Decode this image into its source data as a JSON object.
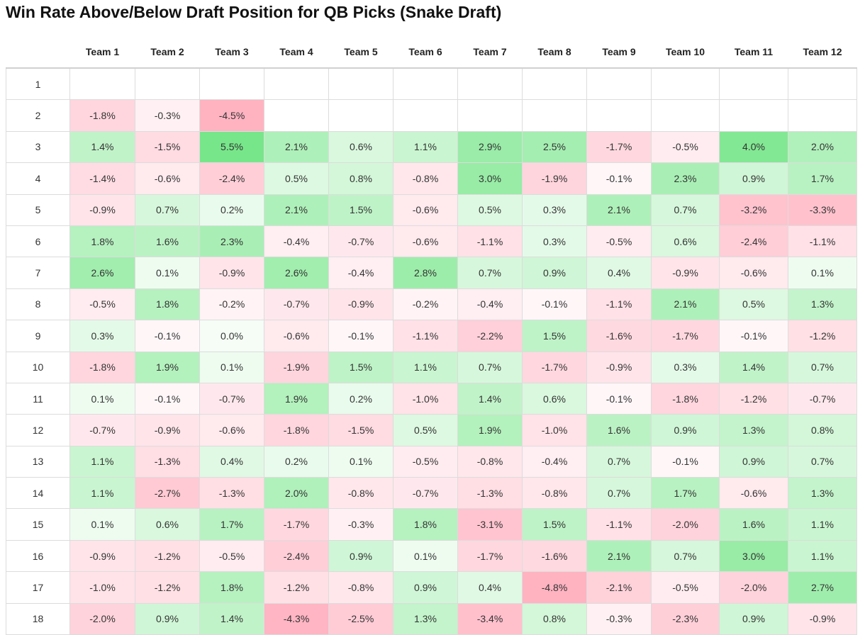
{
  "chart_data": {
    "type": "heatmap",
    "title": "Win Rate Above/Below Draft Position for QB Picks (Snake Draft)",
    "columns": [
      "Team 1",
      "Team 2",
      "Team 3",
      "Team 4",
      "Team 5",
      "Team 6",
      "Team 7",
      "Team 8",
      "Team 9",
      "Team 10",
      "Team 11",
      "Team 12"
    ],
    "rows": [
      "1",
      "2",
      "3",
      "4",
      "5",
      "6",
      "7",
      "8",
      "9",
      "10",
      "11",
      "12",
      "13",
      "14",
      "15",
      "16",
      "17",
      "18"
    ],
    "unit": "%",
    "color_scale": {
      "negative": "#ffb3c1",
      "zero": "#ffffff",
      "positive": "#77e68a"
    },
    "values": [
      [
        null,
        null,
        null,
        null,
        null,
        null,
        null,
        null,
        null,
        null,
        null,
        null
      ],
      [
        -1.8,
        -0.3,
        -4.5,
        null,
        null,
        null,
        null,
        null,
        null,
        null,
        null,
        null
      ],
      [
        1.4,
        -1.5,
        5.5,
        2.1,
        0.6,
        1.1,
        2.9,
        2.5,
        -1.7,
        -0.5,
        4.0,
        2.0
      ],
      [
        -1.4,
        -0.6,
        -2.4,
        0.5,
        0.8,
        -0.8,
        3.0,
        -1.9,
        -0.1,
        2.3,
        0.9,
        1.7
      ],
      [
        -0.9,
        0.7,
        0.2,
        2.1,
        1.5,
        -0.6,
        0.5,
        0.3,
        2.1,
        0.7,
        -3.2,
        -3.3
      ],
      [
        1.8,
        1.6,
        2.3,
        -0.4,
        -0.7,
        -0.6,
        -1.1,
        0.3,
        -0.5,
        0.6,
        -2.4,
        -1.1
      ],
      [
        2.6,
        0.1,
        -0.9,
        2.6,
        -0.4,
        2.8,
        0.7,
        0.9,
        0.4,
        -0.9,
        -0.6,
        0.1
      ],
      [
        -0.5,
        1.8,
        -0.2,
        -0.7,
        -0.9,
        -0.2,
        -0.4,
        -0.1,
        -1.1,
        2.1,
        0.5,
        1.3
      ],
      [
        0.3,
        -0.1,
        0.0,
        -0.6,
        -0.1,
        -1.1,
        -2.2,
        1.5,
        -1.6,
        -1.7,
        -0.1,
        -1.2
      ],
      [
        -1.8,
        1.9,
        0.1,
        -1.9,
        1.5,
        1.1,
        0.7,
        -1.7,
        -0.9,
        0.3,
        1.4,
        0.7
      ],
      [
        0.1,
        -0.1,
        -0.7,
        1.9,
        0.2,
        -1.0,
        1.4,
        0.6,
        -0.1,
        -1.8,
        -1.2,
        -0.7
      ],
      [
        -0.7,
        -0.9,
        -0.6,
        -1.8,
        -1.5,
        0.5,
        1.9,
        -1.0,
        1.6,
        0.9,
        1.3,
        0.8
      ],
      [
        1.1,
        -1.3,
        0.4,
        0.2,
        0.1,
        -0.5,
        -0.8,
        -0.4,
        0.7,
        -0.1,
        0.9,
        0.7
      ],
      [
        1.1,
        -2.7,
        -1.3,
        2.0,
        -0.8,
        -0.7,
        -1.3,
        -0.8,
        0.7,
        1.7,
        -0.6,
        1.3
      ],
      [
        0.1,
        0.6,
        1.7,
        -1.7,
        -0.3,
        1.8,
        -3.1,
        1.5,
        -1.1,
        -2.0,
        1.6,
        1.1
      ],
      [
        -0.9,
        -1.2,
        -0.5,
        -2.4,
        0.9,
        0.1,
        -1.7,
        -1.6,
        2.1,
        0.7,
        3.0,
        1.1
      ],
      [
        -1.0,
        -1.2,
        1.8,
        -1.2,
        -0.8,
        0.9,
        0.4,
        -4.8,
        -2.1,
        -0.5,
        -2.0,
        2.7
      ],
      [
        -2.0,
        0.9,
        1.4,
        -4.3,
        -2.5,
        1.3,
        -3.4,
        0.8,
        -0.3,
        -2.3,
        0.9,
        -0.9
      ]
    ]
  }
}
